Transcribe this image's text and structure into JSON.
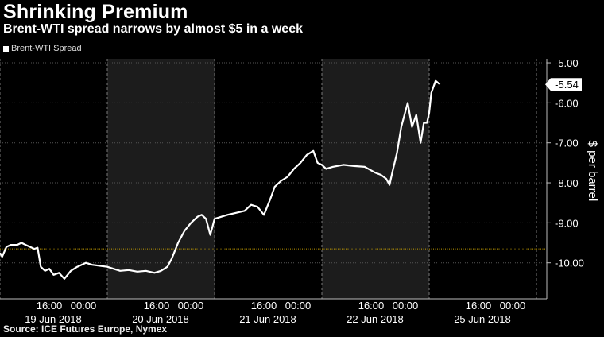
{
  "header": {
    "title": "Shrinking Premium",
    "subtitle": "Brent-WTI spread narrows by almost $5 in a week"
  },
  "source": "Source: ICE Futures Europe, Nymex",
  "colors": {
    "background": "#000000",
    "line": "#ffffff",
    "shade": "#1c1c1c",
    "reference": "#c8a000",
    "grid": "#555555"
  },
  "chart_data": {
    "type": "line",
    "title": "Shrinking Premium",
    "subtitle": "Brent-WTI spread narrows by almost $5 in a week",
    "ylabel": "$ per barrel",
    "ylim": [
      -10.9,
      -4.9
    ],
    "yticks": [
      -5,
      -6,
      -7,
      -8,
      -9,
      -10
    ],
    "ytick_labels": [
      "-5.00",
      "-6.00",
      "-7.00",
      "-8.00",
      "-9.00",
      "-10.00"
    ],
    "last_value": -5.54,
    "last_value_label": "-5.54",
    "reference_line": -9.65,
    "grid": true,
    "legend_position": "top-left",
    "days": [
      "19 Jun 2018",
      "20 Jun 2018",
      "21 Jun 2018",
      "22 Jun 2018",
      "25 Jun 2018"
    ],
    "time_ticks": [
      "16:00",
      "00:00"
    ],
    "series": [
      {
        "name": "Brent-WTI Spread",
        "x": [
          0,
          0.02,
          0.06,
          0.1,
          0.16,
          0.2,
          0.24,
          0.28,
          0.32,
          0.35,
          0.38,
          0.42,
          0.46,
          0.5,
          0.55,
          0.6,
          0.66,
          0.72,
          0.8,
          0.86,
          1.0,
          1.06,
          1.12,
          1.2,
          1.28,
          1.36,
          1.44,
          1.5,
          1.56,
          1.6,
          1.66,
          1.72,
          1.78,
          1.84,
          1.88,
          1.92,
          1.96,
          2.0,
          2.06,
          2.12,
          2.2,
          2.28,
          2.34,
          2.4,
          2.46,
          2.52,
          2.56,
          2.62,
          2.68,
          2.74,
          2.8,
          2.86,
          2.92,
          2.96,
          3.0,
          3.04,
          3.1,
          3.2,
          3.3,
          3.4,
          3.5,
          3.55,
          3.6,
          3.63,
          3.66,
          3.7,
          3.74,
          3.78,
          3.8,
          3.84,
          3.88,
          3.92,
          3.95,
          3.98,
          4.0,
          4.02,
          4.06,
          4.1
        ],
        "values": [
          -9.75,
          -9.85,
          -9.6,
          -9.55,
          -9.55,
          -9.5,
          -9.55,
          -9.6,
          -9.65,
          -9.62,
          -10.1,
          -10.2,
          -10.15,
          -10.3,
          -10.25,
          -10.4,
          -10.2,
          -10.1,
          -10.0,
          -10.05,
          -10.1,
          -10.15,
          -10.2,
          -10.18,
          -10.22,
          -10.2,
          -10.25,
          -10.2,
          -10.1,
          -9.9,
          -9.5,
          -9.2,
          -9.0,
          -8.85,
          -8.8,
          -8.9,
          -9.3,
          -8.9,
          -8.85,
          -8.8,
          -8.75,
          -8.7,
          -8.55,
          -8.6,
          -8.8,
          -8.4,
          -8.1,
          -7.95,
          -7.85,
          -7.65,
          -7.5,
          -7.3,
          -7.2,
          -7.5,
          -7.55,
          -7.65,
          -7.6,
          -7.55,
          -7.58,
          -7.6,
          -7.75,
          -7.8,
          -7.9,
          -8.05,
          -7.7,
          -7.25,
          -6.6,
          -6.2,
          -6.0,
          -6.6,
          -6.3,
          -7.0,
          -6.5,
          -6.5,
          -6.25,
          -5.75,
          -5.45,
          -5.54
        ]
      }
    ]
  }
}
